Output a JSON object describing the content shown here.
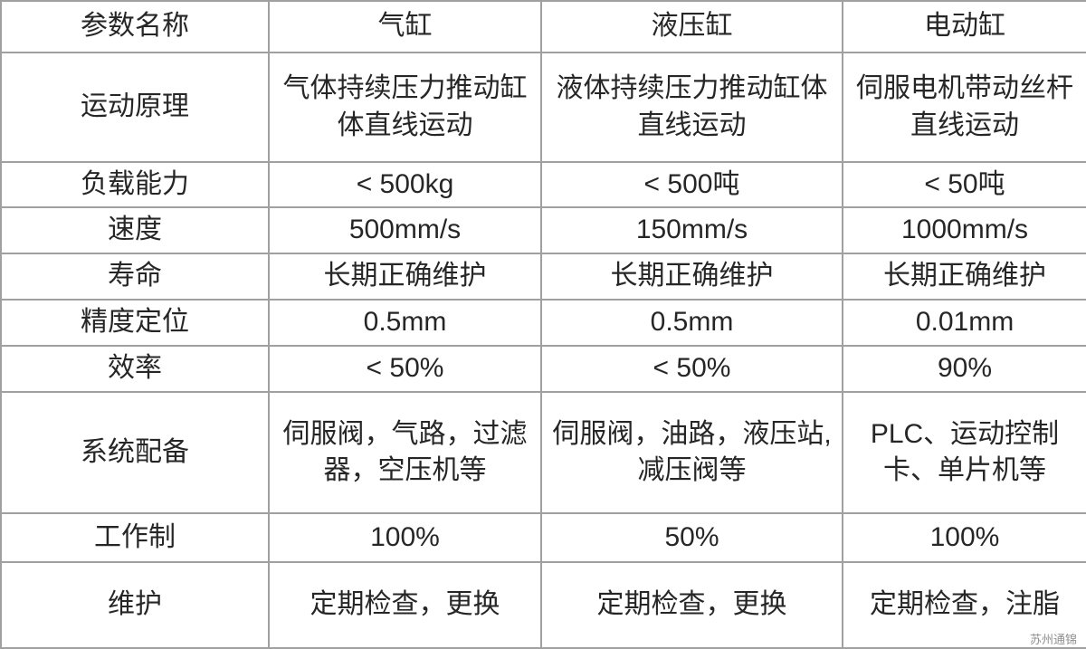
{
  "page": {
    "watermark": "苏州通锦"
  },
  "colors": {
    "background": "#ffffff",
    "border": "#a0a0a0",
    "text": "#262626",
    "watermark": "#8f8f8f"
  },
  "table": {
    "header": [
      "参数名称",
      "气缸",
      "液压缸",
      "电动缸"
    ],
    "rows": [
      {
        "label": "运动原理",
        "values": [
          "气体持续压力推动缸体直线运动",
          "液体持续压力推动缸体直线运动",
          "伺服电机带动丝杆直线运动"
        ]
      },
      {
        "label": "负载能力",
        "values": [
          "< 500kg",
          "< 500吨",
          "< 50吨"
        ]
      },
      {
        "label": "速度",
        "values": [
          "500mm/s",
          "150mm/s",
          "1000mm/s"
        ]
      },
      {
        "label": "寿命",
        "values": [
          "长期正确维护",
          "长期正确维护",
          "长期正确维护"
        ]
      },
      {
        "label": "精度定位",
        "values": [
          "0.5mm",
          "0.5mm",
          "0.01mm"
        ]
      },
      {
        "label": "效率",
        "values": [
          "< 50%",
          "< 50%",
          "90%"
        ]
      },
      {
        "label": "系统配备",
        "values": [
          "伺服阀，气路，过滤器，空压机等",
          "伺服阀，油路，液压站,减压阀等",
          "PLC、运动控制卡、单片机等"
        ]
      },
      {
        "label": "工作制",
        "values": [
          "100%",
          "50%",
          "100%"
        ]
      },
      {
        "label": "维护",
        "values": [
          "定期检查，更换",
          "定期检查，更换",
          "定期检查，注脂"
        ]
      }
    ]
  }
}
